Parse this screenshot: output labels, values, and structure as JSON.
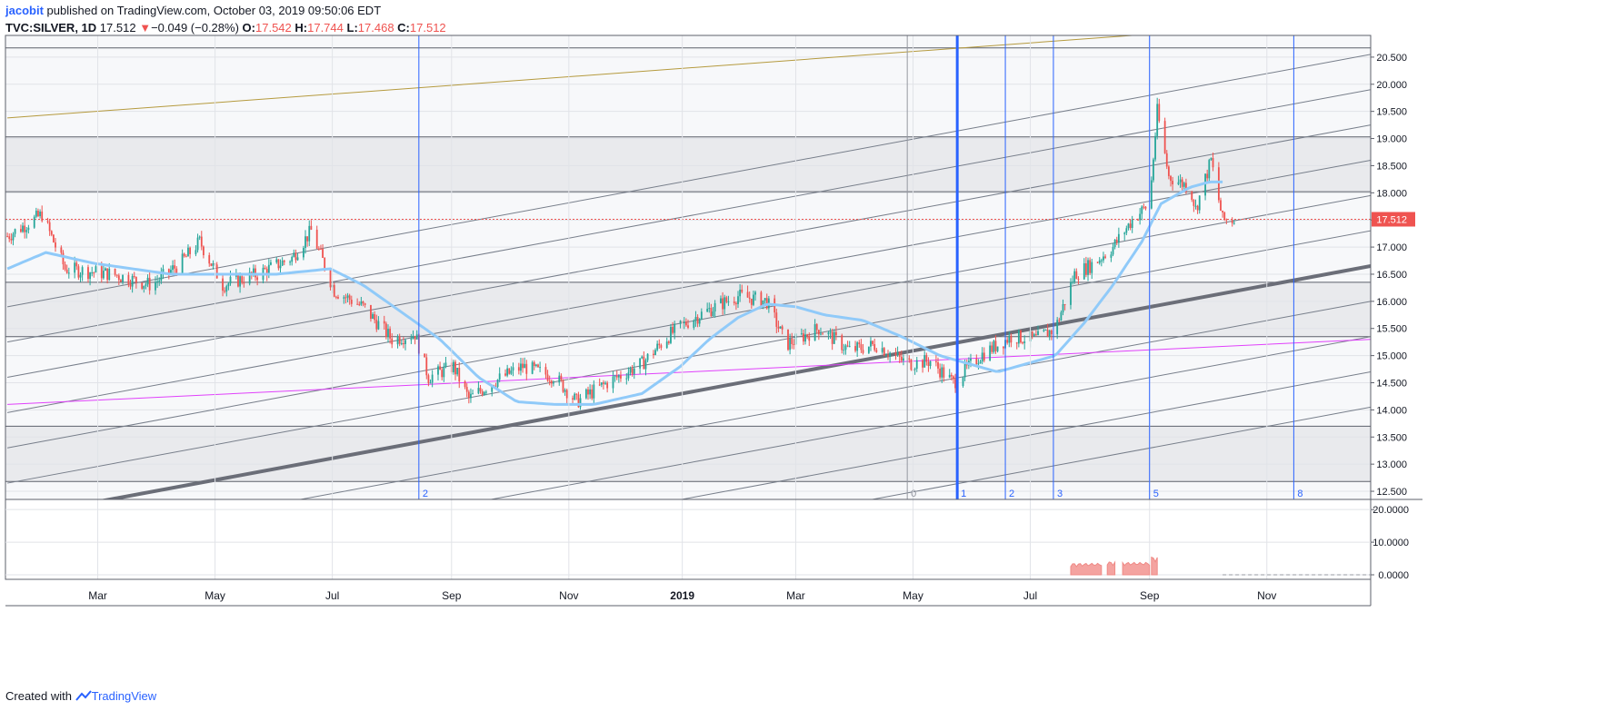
{
  "header": {
    "author": "jacobit",
    "published_text": "published on TradingView.com, October 03, 2019 09:50:06 EDT",
    "symbol": "TVC:SILVER, 1D",
    "last": "17.512",
    "change_arrow": "▼",
    "change": "−0.049 (−0.28%)",
    "open_label": "O:",
    "open": "17.542",
    "high_label": "H:",
    "high": "17.744",
    "low_label": "L:",
    "low": "17.468",
    "close_label": "C:",
    "close": "17.512"
  },
  "footer": {
    "created_with": "Created with",
    "brand": "TradingView"
  },
  "colors": {
    "up": "#26a69a",
    "down": "#ef5350",
    "ma": "#90caf9",
    "pitch": "#777e8a",
    "pitch_bold": "#6b6e78",
    "magenta": "#e040fb",
    "olive": "#b59a3e",
    "vline": "#2962ff",
    "zone": "#e9eaed",
    "hline": "#5d606b",
    "last_price": "#ef5350"
  },
  "chart_data": {
    "type": "candlestick",
    "title": "TVC:SILVER, 1D",
    "x_labels": [
      {
        "t": "Mar",
        "d": 47
      },
      {
        "t": "May",
        "d": 108
      },
      {
        "t": "Jul",
        "d": 169
      },
      {
        "t": "Sep",
        "d": 231
      },
      {
        "t": "Nov",
        "d": 292
      },
      {
        "t": "2019",
        "d": 351
      },
      {
        "t": "Mar",
        "d": 410
      },
      {
        "t": "May",
        "d": 471
      },
      {
        "t": "Jul",
        "d": 532
      },
      {
        "t": "Sep",
        "d": 594
      },
      {
        "t": "Nov",
        "d": 655
      }
    ],
    "y_ticks": [
      12.5,
      13.0,
      13.5,
      14.0,
      14.5,
      15.0,
      15.5,
      16.0,
      16.5,
      17.0,
      17.5,
      18.0,
      18.5,
      19.0,
      19.5,
      20.0,
      20.5
    ],
    "y_range": [
      12.35,
      20.9
    ],
    "last_price": 17.512,
    "last_price_label": "17.512",
    "h_levels": [
      12.68,
      13.7,
      15.35,
      16.35,
      18.02,
      19.03,
      20.67
    ],
    "zones": [
      [
        12.68,
        13.7
      ],
      [
        15.35,
        16.35
      ],
      [
        18.02,
        19.03
      ]
    ],
    "fib_time_lines": [
      {
        "label": "2",
        "d": 214
      },
      {
        "label": "0",
        "d": 468
      },
      {
        "label": "1",
        "d": 494
      },
      {
        "label": "2",
        "d": 519
      },
      {
        "label": "3",
        "d": 544
      },
      {
        "label": "5",
        "d": 594
      },
      {
        "label": "8",
        "d": 669
      }
    ],
    "pitchfork": {
      "d1": 0,
      "p1": 12.0,
      "d2": 709,
      "p2": 16.65,
      "spacing": 0.65,
      "offsets": [
        -4,
        -3,
        -2,
        -1,
        1,
        2,
        3,
        4,
        5,
        6
      ]
    },
    "magenta_line": {
      "d1": 0,
      "p1": 14.1,
      "d2": 709,
      "p2": 15.3
    },
    "olive_line": {
      "d1": 0,
      "p1": 19.38,
      "d2": 585,
      "p2": 20.9
    },
    "price_anchors": [
      [
        0,
        17.2
      ],
      [
        18,
        17.6
      ],
      [
        30,
        16.6
      ],
      [
        55,
        16.5
      ],
      [
        75,
        16.3
      ],
      [
        90,
        16.7
      ],
      [
        100,
        17.1
      ],
      [
        112,
        16.3
      ],
      [
        130,
        16.5
      ],
      [
        148,
        16.8
      ],
      [
        158,
        17.3
      ],
      [
        170,
        16.2
      ],
      [
        185,
        15.9
      ],
      [
        200,
        15.3
      ],
      [
        212,
        15.4
      ],
      [
        219,
        14.6
      ],
      [
        232,
        14.8
      ],
      [
        240,
        14.2
      ],
      [
        252,
        14.5
      ],
      [
        268,
        14.8
      ],
      [
        285,
        14.6
      ],
      [
        296,
        14.15
      ],
      [
        312,
        14.5
      ],
      [
        330,
        14.85
      ],
      [
        345,
        15.4
      ],
      [
        355,
        15.65
      ],
      [
        368,
        15.9
      ],
      [
        380,
        16.1
      ],
      [
        395,
        16.0
      ],
      [
        405,
        15.2
      ],
      [
        422,
        15.5
      ],
      [
        438,
        15.1
      ],
      [
        452,
        15.2
      ],
      [
        468,
        14.85
      ],
      [
        480,
        14.9
      ],
      [
        492,
        14.5
      ],
      [
        506,
        15.0
      ],
      [
        515,
        15.2
      ],
      [
        522,
        15.35
      ],
      [
        535,
        15.3
      ],
      [
        545,
        15.5
      ],
      [
        555,
        16.5
      ],
      [
        565,
        16.7
      ],
      [
        575,
        17.0
      ],
      [
        585,
        17.5
      ],
      [
        594,
        17.8
      ],
      [
        598,
        19.5
      ],
      [
        604,
        18.3
      ],
      [
        615,
        18.1
      ],
      [
        618,
        17.7
      ],
      [
        626,
        18.6
      ],
      [
        632,
        17.5
      ],
      [
        638,
        17.5
      ]
    ],
    "ma_anchors": [
      [
        0,
        16.6
      ],
      [
        20,
        16.9
      ],
      [
        45,
        16.7
      ],
      [
        85,
        16.5
      ],
      [
        140,
        16.5
      ],
      [
        168,
        16.6
      ],
      [
        185,
        16.3
      ],
      [
        205,
        15.8
      ],
      [
        225,
        15.3
      ],
      [
        245,
        14.6
      ],
      [
        265,
        14.15
      ],
      [
        285,
        14.1
      ],
      [
        305,
        14.1
      ],
      [
        330,
        14.3
      ],
      [
        350,
        14.8
      ],
      [
        365,
        15.3
      ],
      [
        380,
        15.7
      ],
      [
        395,
        15.95
      ],
      [
        410,
        15.9
      ],
      [
        425,
        15.75
      ],
      [
        445,
        15.65
      ],
      [
        465,
        15.35
      ],
      [
        485,
        15.0
      ],
      [
        500,
        14.85
      ],
      [
        515,
        14.7
      ],
      [
        530,
        14.85
      ],
      [
        545,
        15.0
      ],
      [
        560,
        15.6
      ],
      [
        575,
        16.3
      ],
      [
        590,
        17.1
      ],
      [
        600,
        17.8
      ],
      [
        615,
        18.1
      ],
      [
        625,
        18.2
      ],
      [
        632,
        18.2
      ]
    ],
    "volume": {
      "y_ticks": [
        "0.0000",
        "10.0000",
        "20.0000"
      ],
      "range": [
        0,
        22
      ],
      "segments": [
        [
          553,
          569,
          3.5
        ],
        [
          572,
          576,
          4.0
        ],
        [
          580,
          594,
          3.8
        ],
        [
          595,
          598,
          5.5
        ]
      ]
    }
  }
}
